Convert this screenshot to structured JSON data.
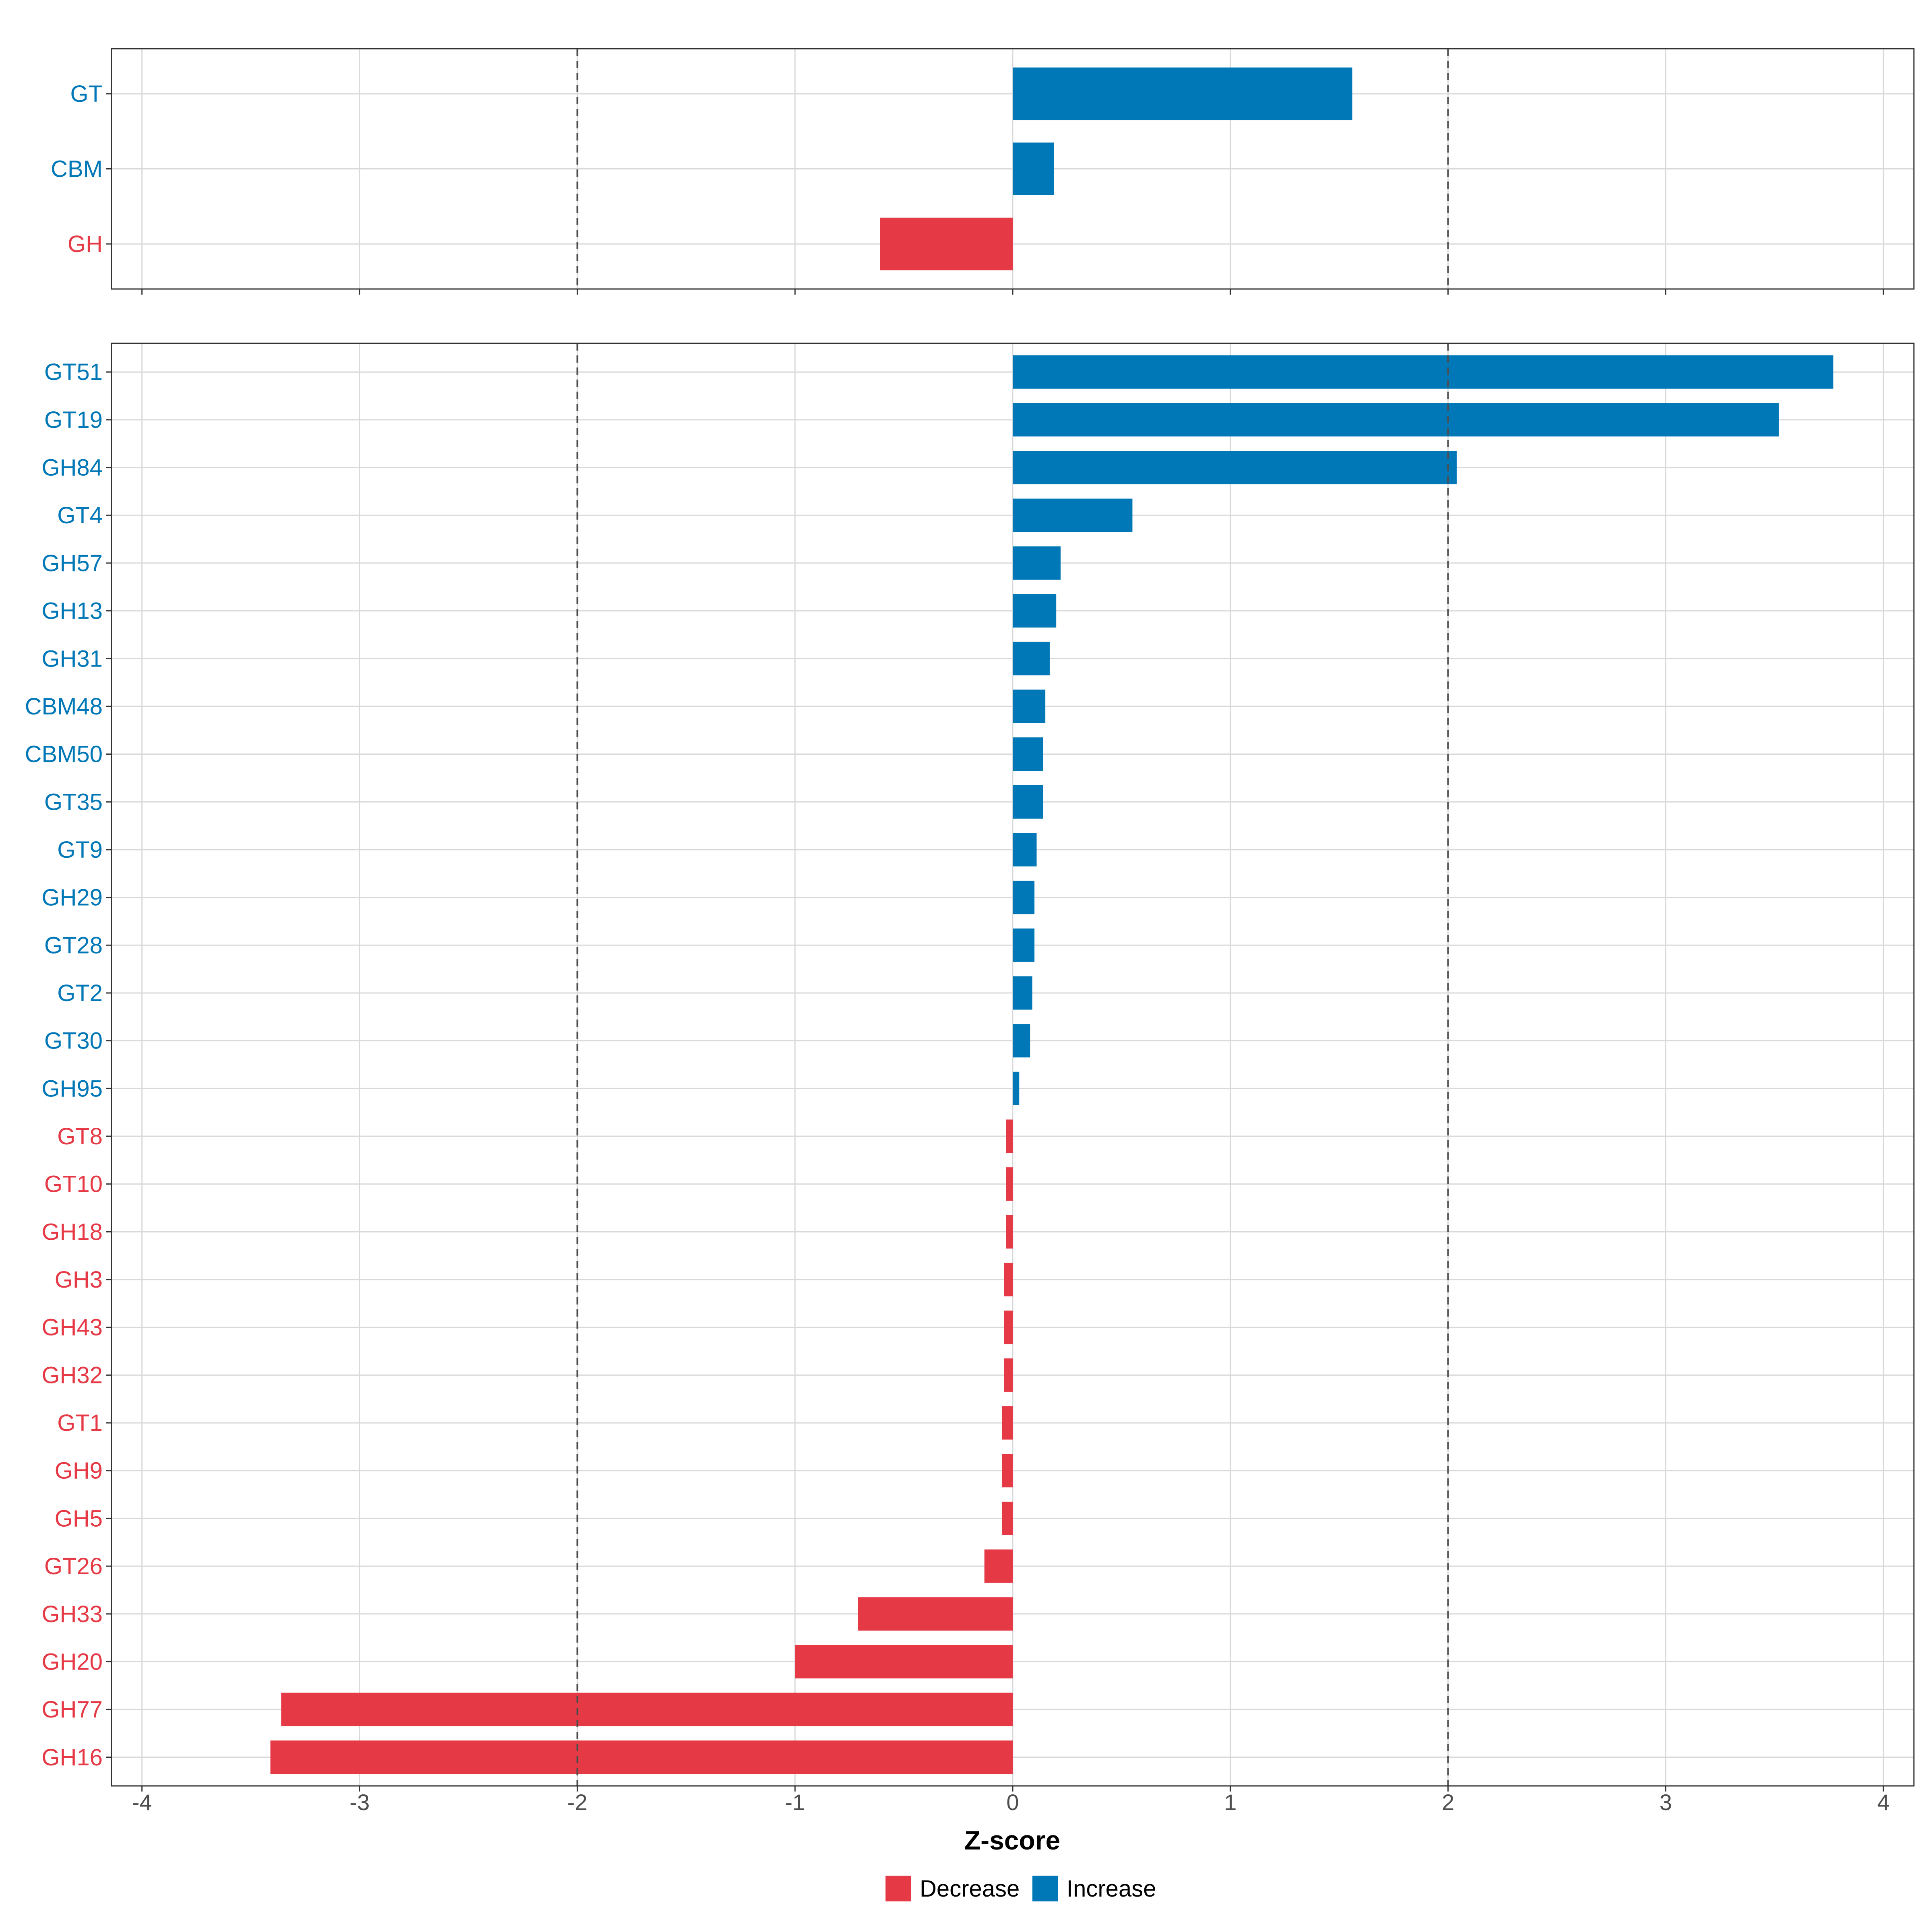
{
  "chart_data": [
    {
      "type": "bar",
      "orientation": "horizontal",
      "panel": "top",
      "categories": [
        "GT",
        "CBM",
        "GH"
      ],
      "values": [
        1.56,
        0.19,
        -0.61
      ],
      "xlim": [
        -4.14,
        4.14
      ],
      "xticks": [
        -4,
        -3,
        -2,
        -1,
        0,
        1,
        2,
        3,
        4
      ],
      "reference_lines": [
        -2,
        2
      ],
      "grid": true
    },
    {
      "type": "bar",
      "orientation": "horizontal",
      "panel": "bottom",
      "categories": [
        "GT51",
        "GT19",
        "GH84",
        "GT4",
        "GH57",
        "GH13",
        "GH31",
        "CBM48",
        "CBM50",
        "GT35",
        "GT9",
        "GH29",
        "GT28",
        "GT2",
        "GT30",
        "GH95",
        "GT8",
        "GT10",
        "GH18",
        "GH3",
        "GH43",
        "GH32",
        "GT1",
        "GH9",
        "GH5",
        "GT26",
        "GH33",
        "GH20",
        "GH77",
        "GH16"
      ],
      "values": [
        3.77,
        3.52,
        2.04,
        0.55,
        0.22,
        0.2,
        0.17,
        0.15,
        0.14,
        0.14,
        0.11,
        0.1,
        0.1,
        0.09,
        0.08,
        0.03,
        -0.03,
        -0.03,
        -0.03,
        -0.04,
        -0.04,
        -0.04,
        -0.05,
        -0.05,
        -0.05,
        -0.13,
        -0.71,
        -1.0,
        -3.36,
        -3.41
      ],
      "xlim": [
        -4.14,
        4.14
      ],
      "xticks": [
        -4,
        -3,
        -2,
        -1,
        0,
        1,
        2,
        3,
        4
      ],
      "xtick_labels": [
        "-4",
        "-3",
        "-2",
        "-1",
        "0",
        "1",
        "2",
        "3",
        "4"
      ],
      "reference_lines": [
        -2,
        2
      ],
      "xlabel": "Z-score",
      "grid": true
    }
  ],
  "legend": {
    "position": "bottom",
    "items": [
      {
        "label": "Decrease",
        "color": "#E63946"
      },
      {
        "label": "Increase",
        "color": "#0077B6"
      }
    ]
  },
  "colors": {
    "decrease": "#E63946",
    "increase": "#0077B6"
  }
}
